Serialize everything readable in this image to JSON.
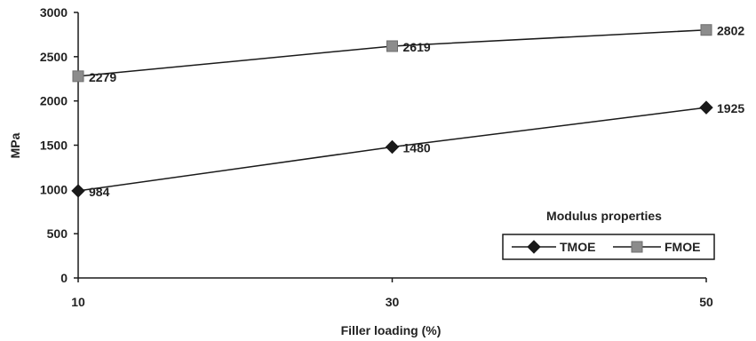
{
  "chart_data": {
    "type": "line",
    "title": "",
    "xlabel": "Filler loading (%)",
    "ylabel": "MPa",
    "x": [
      10,
      30,
      50
    ],
    "x_ticks": [
      "10",
      "30",
      "50"
    ],
    "y_ticks": [
      "0",
      "500",
      "1000",
      "1500",
      "2000",
      "2500",
      "3000"
    ],
    "ylim": [
      0,
      3000
    ],
    "grid": false,
    "legend": {
      "title": "Modulus properties",
      "placement": "bottom-right"
    },
    "series": [
      {
        "name": "TMOE",
        "marker": "diamond",
        "color": "#1a1a1a",
        "values": [
          984,
          1480,
          1925
        ],
        "labels": [
          "984",
          "1480",
          "1925"
        ]
      },
      {
        "name": "FMOE",
        "marker": "square",
        "color": "#8c8c8c",
        "values": [
          2279,
          2619,
          2802
        ],
        "labels": [
          "2279",
          "2619",
          "2802"
        ]
      }
    ]
  }
}
